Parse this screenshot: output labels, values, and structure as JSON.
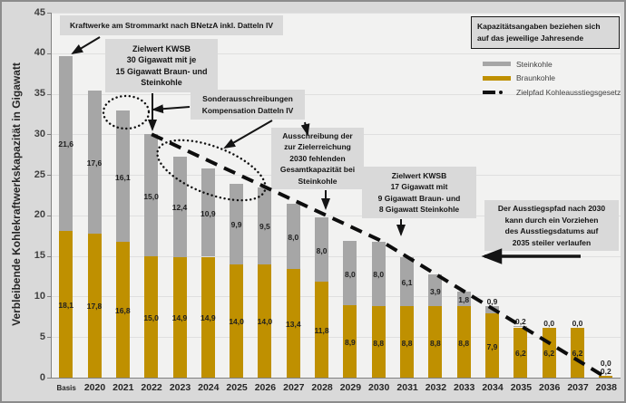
{
  "note_box": {
    "lines": [
      "Kapazitätsangaben beziehen sich",
      "auf das jeweilige Jahresende"
    ]
  },
  "legend": [
    {
      "label": "Steinkohle",
      "color": "#a6a6a6",
      "swatch": "bar"
    },
    {
      "label": "Braunkohle",
      "color": "#bf9000",
      "swatch": "bar"
    },
    {
      "label": "Zielpfad Kohleausstiegsgesetz",
      "color": "#111111",
      "swatch": "dashed-line"
    }
  ],
  "annotations": [
    {
      "lines": [
        "Kraftwerke am Strommarkt nach BNetzA inkl. Datteln IV"
      ]
    },
    {
      "lines": [
        "Zielwert KWSB",
        "30 Gigawatt mit je",
        "15 Gigawatt Braun- und",
        "Steinkohle"
      ]
    },
    {
      "lines": [
        "Sonderausschreibungen",
        "Kompensation Datteln IV"
      ]
    },
    {
      "lines": [
        "Ausschreibung der",
        "zur Zielerreichung",
        "2030 fehlenden",
        "Gesamtkapazität bei",
        "Steinkohle"
      ]
    },
    {
      "lines": [
        "Zielwert KWSB",
        "17 Gigawatt mit",
        "9 Gigawatt Braun- und",
        "8 Gigawatt Steinkohle"
      ]
    },
    {
      "lines": [
        "Der Ausstiegspfad nach 2030",
        "kann durch ein Vorziehen",
        "des Ausstiegsdatums auf",
        "2035 steiler verlaufen"
      ]
    }
  ],
  "chart_data": {
    "type": "bar",
    "stacked": true,
    "title": "",
    "xlabel": "",
    "ylabel": "Verbleibende Kohlekraftwerkskapazität in Gigawatt",
    "ylim": [
      0,
      45
    ],
    "ytick_step": 5,
    "yticks": [
      "0",
      "5",
      "10",
      "15",
      "20",
      "25",
      "30",
      "35",
      "40",
      "45"
    ],
    "grid": "horizontal",
    "legend_position": "top-right",
    "categories": [
      "Basis",
      "2020",
      "2021",
      "2022",
      "2023",
      "2024",
      "2025",
      "2026",
      "2027",
      "2028",
      "2029",
      "2030",
      "2031",
      "2032",
      "2033",
      "2034",
      "2035",
      "2036",
      "2037",
      "2038"
    ],
    "series": [
      {
        "name": "Braunkohle",
        "color": "#bf9000",
        "values": [
          18.1,
          17.8,
          16.8,
          15.0,
          14.9,
          14.9,
          14.0,
          14.0,
          13.4,
          11.8,
          8.9,
          8.8,
          8.8,
          8.8,
          8.8,
          7.9,
          6.2,
          6.2,
          6.2,
          0.2
        ],
        "labels": [
          "18,1",
          "17,8",
          "16,8",
          "15,0",
          "14,9",
          "14,9",
          "14,0",
          "14,0",
          "13,4",
          "11,8",
          "8,9",
          "8,8",
          "8,8",
          "8,8",
          "8,8",
          "7,9",
          "6,2",
          "6,2",
          "6,2",
          "0,2"
        ]
      },
      {
        "name": "Steinkohle",
        "color": "#a6a6a6",
        "values": [
          21.6,
          17.6,
          16.1,
          15.0,
          12.4,
          10.9,
          9.9,
          9.5,
          8.0,
          8.0,
          8.0,
          8.0,
          6.1,
          3.9,
          1.8,
          0.9,
          0.2,
          0.0,
          0.0,
          0.0
        ],
        "labels": [
          "21,6",
          "17,6",
          "16,1",
          "15,0",
          "12,4",
          "10,9",
          "9,9",
          "9,5",
          "8,0",
          "8,0",
          "8,0",
          "8,0",
          "6,1",
          "3,9",
          "1,8",
          "0,9",
          "0,2",
          "0,0",
          "0,0",
          "0,0"
        ]
      }
    ],
    "target_line": {
      "name": "Zielpfad Kohleausstiegsgesetz",
      "style": "dashed",
      "color": "#111111",
      "points": [
        {
          "category": "2022",
          "value": 30
        },
        {
          "category": "2030",
          "value": 17
        },
        {
          "category": "2038",
          "value": 0
        }
      ]
    }
  }
}
